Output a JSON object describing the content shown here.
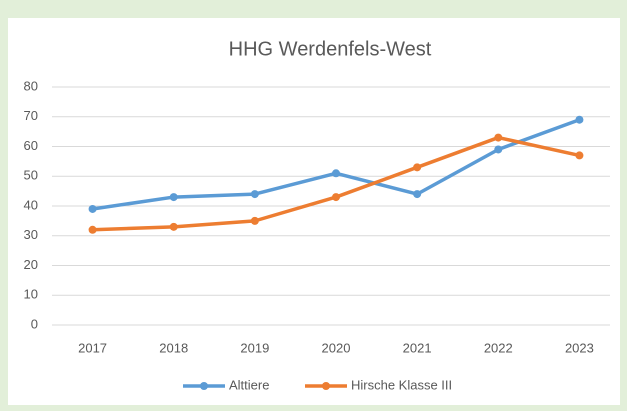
{
  "chart_data": {
    "type": "line",
    "title": "HHG Werdenfels-West",
    "categories": [
      "2017",
      "2018",
      "2019",
      "2020",
      "2021",
      "2022",
      "2023"
    ],
    "series": [
      {
        "name": "Alttiere",
        "color": "#5b9bd5",
        "values": [
          39,
          43,
          44,
          51,
          44,
          59,
          69
        ]
      },
      {
        "name": "Hirsche Klasse III",
        "color": "#ed7d31",
        "values": [
          32,
          33,
          35,
          43,
          53,
          63,
          57
        ]
      }
    ],
    "ylim": [
      0,
      80
    ],
    "yticks": [
      0,
      10,
      20,
      30,
      40,
      50,
      60,
      70,
      80
    ],
    "grid": true,
    "legend": "bottom"
  }
}
